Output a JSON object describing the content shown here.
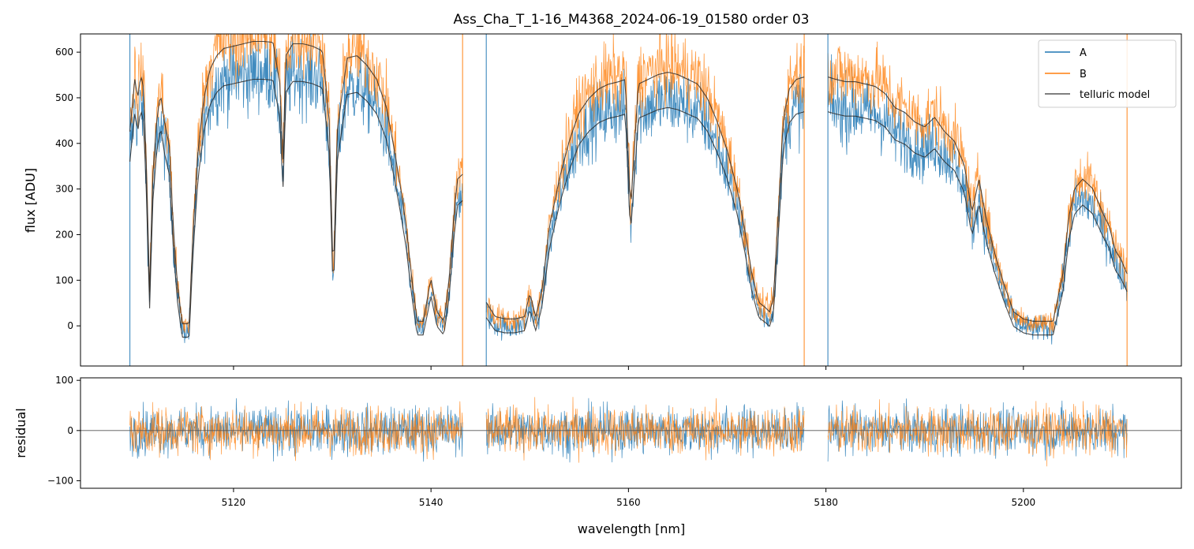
{
  "chart_data": [
    {
      "type": "line",
      "title": "Ass_Cha_T_1-16_M4368_2024-06-19_01580  order 03",
      "ylabel": "flux [ADU]",
      "xlabel": "",
      "xlim": [
        5104.5,
        5216
      ],
      "ylim": [
        -88,
        640
      ],
      "yticks": [
        0,
        100,
        200,
        300,
        400,
        500,
        600
      ],
      "ytick_labels": [
        "0",
        "100",
        "200",
        "300",
        "400",
        "500",
        "600"
      ],
      "legend": {
        "position": "top-right",
        "entries": [
          "A",
          "B",
          "telluric model"
        ]
      },
      "colors": {
        "A": "#1f77b4",
        "B": "#ff7f0e",
        "telluric model": "#000000"
      },
      "data_range_x": [
        5109.5,
        5210.5
      ],
      "gaps": [
        [
          5143.2,
          5145.6
        ],
        [
          5177.8,
          5180.2
        ]
      ],
      "spikes_x": [
        5109.5,
        5143.2,
        5145.6,
        5177.8,
        5180.2,
        5210.5
      ],
      "series": [
        {
          "name": "telluric model",
          "x": [
            5109.5,
            5110.0,
            5110.3,
            5110.6,
            5110.9,
            5111.2,
            5111.5,
            5111.8,
            5112.2,
            5112.6,
            5113.0,
            5113.5,
            5113.9,
            5114.3,
            5114.8,
            5115.5,
            5115.9,
            5116.4,
            5117.0,
            5117.6,
            5118.3,
            5119.0,
            5120.0,
            5121.0,
            5122.0,
            5123.0,
            5124.0,
            5124.7,
            5125.0,
            5125.3,
            5126.0,
            5127.0,
            5128.0,
            5129.0,
            5129.7,
            5130.1,
            5130.5,
            5131.5,
            5132.5,
            5133.5,
            5134.5,
            5135.5,
            5136.3,
            5137.0,
            5137.5,
            5138.0,
            5138.6,
            5139.2,
            5140.0,
            5140.6,
            5141.3,
            5141.8,
            5142.3,
            5142.7,
            5143.2,
            5145.6,
            5146.5,
            5147.5,
            5148.5,
            5149.5,
            5150.0,
            5150.6,
            5151.2,
            5152.0,
            5153.0,
            5154.0,
            5155.0,
            5156.0,
            5157.0,
            5158.0,
            5159.0,
            5159.7,
            5160.2,
            5161.0,
            5162.0,
            5163.0,
            5164.0,
            5165.0,
            5166.0,
            5167.0,
            5168.0,
            5169.0,
            5170.0,
            5171.0,
            5171.8,
            5172.5,
            5173.2,
            5173.8,
            5174.3,
            5174.7,
            5175.2,
            5175.7,
            5176.3,
            5177.0,
            5177.8,
            5180.2,
            5181.0,
            5182.0,
            5183.0,
            5184.0,
            5185.0,
            5186.0,
            5187.0,
            5188.0,
            5189.0,
            5190.0,
            5191.0,
            5192.0,
            5193.0,
            5194.0,
            5194.8,
            5195.5,
            5196.2,
            5197.0,
            5198.0,
            5199.0,
            5200.0,
            5201.0,
            5202.0,
            5203.0,
            5204.0,
            5204.6,
            5205.2,
            5206.0,
            5207.0,
            5208.0,
            5208.7,
            5209.3,
            5209.9,
            5210.5
          ],
          "y": [
            400,
            510,
            470,
            520,
            490,
            310,
            60,
            300,
            420,
            480,
            420,
            370,
            200,
            80,
            -5,
            -5,
            190,
            360,
            470,
            530,
            560,
            575,
            580,
            585,
            590,
            590,
            588,
            500,
            330,
            560,
            585,
            585,
            580,
            570,
            420,
            80,
            400,
            555,
            560,
            540,
            510,
            450,
            360,
            270,
            200,
            100,
            0,
            0,
            90,
            20,
            0,
            80,
            220,
            300,
            310,
            40,
            10,
            5,
            5,
            10,
            60,
            10,
            60,
            200,
            300,
            380,
            440,
            470,
            490,
            500,
            505,
            510,
            230,
            500,
            510,
            520,
            525,
            520,
            510,
            500,
            470,
            420,
            360,
            280,
            190,
            100,
            40,
            30,
            20,
            50,
            240,
            430,
            490,
            510,
            515,
            515,
            510,
            505,
            505,
            500,
            495,
            480,
            450,
            440,
            420,
            410,
            430,
            400,
            380,
            330,
            230,
            300,
            220,
            150,
            80,
            20,
            5,
            0,
            0,
            0,
            100,
            220,
            280,
            300,
            280,
            230,
            200,
            150,
            130,
            100
          ]
        }
      ]
    },
    {
      "type": "line",
      "title": "",
      "ylabel": "residual",
      "xlabel": "wavelength [nm]",
      "xlim": [
        5104.5,
        5216
      ],
      "ylim": [
        -115,
        105
      ],
      "xticks": [
        5120,
        5140,
        5160,
        5180,
        5200
      ],
      "xtick_labels": [
        "5120",
        "5140",
        "5160",
        "5180",
        "5200"
      ],
      "yticks": [
        -100,
        0,
        100
      ],
      "ytick_labels": [
        "−100",
        "0",
        "100"
      ],
      "zero_line": true,
      "noise_amplitude": 40,
      "segments": [
        [
          5109.5,
          5143.2
        ],
        [
          5145.6,
          5177.8
        ],
        [
          5180.2,
          5210.5
        ]
      ]
    }
  ]
}
